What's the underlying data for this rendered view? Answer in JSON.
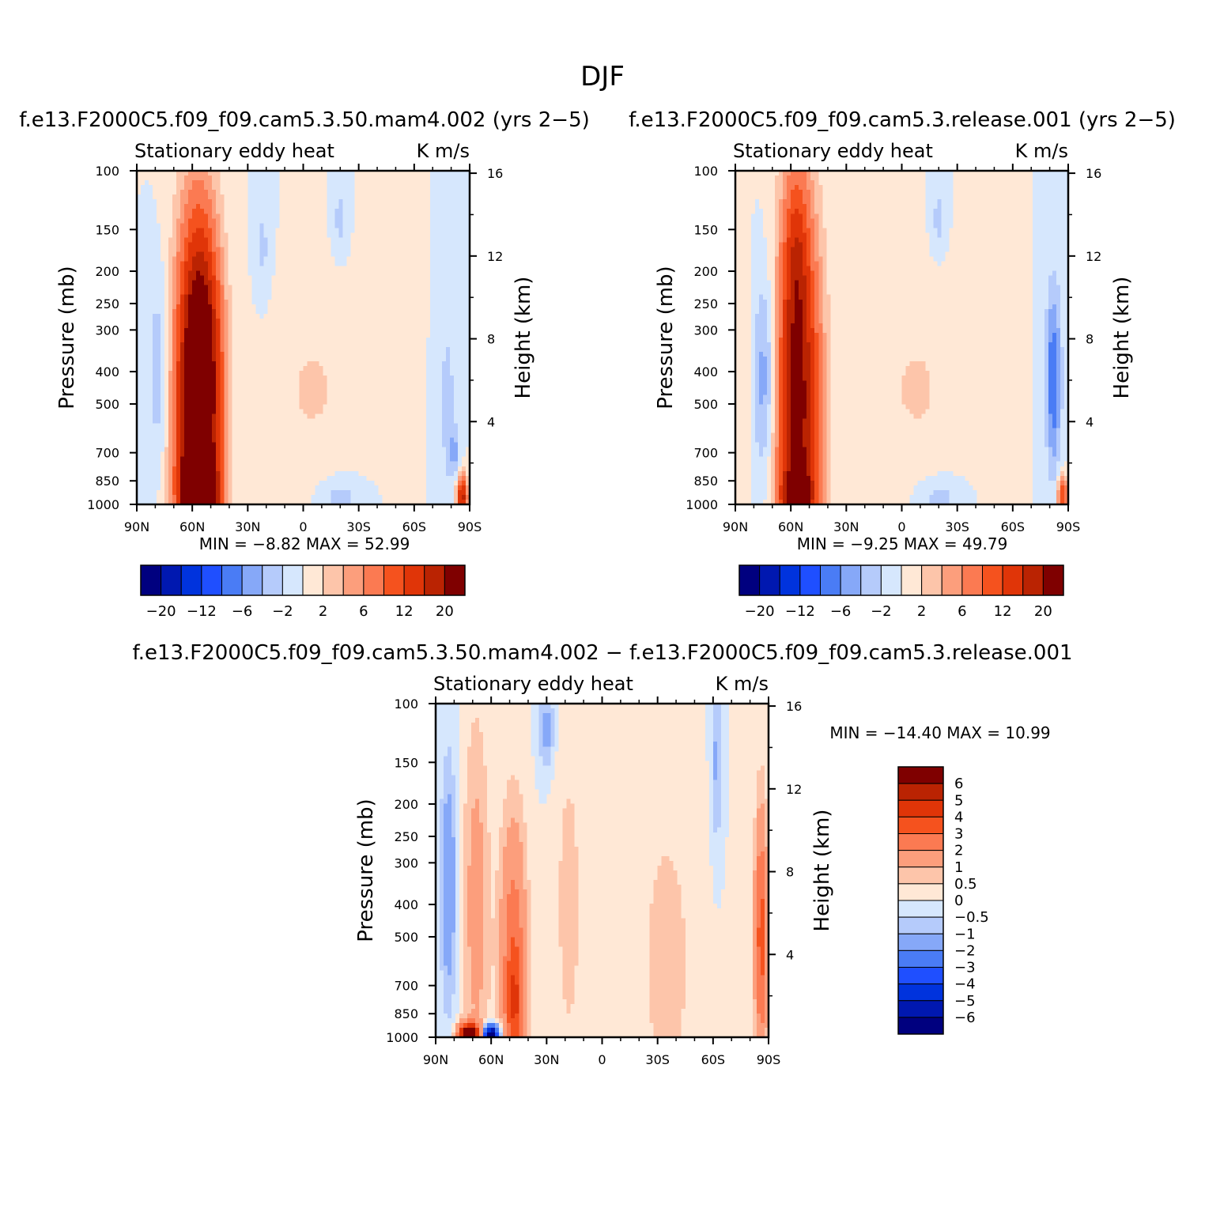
{
  "figure": {
    "title": "DJF"
  },
  "colors": {
    "abs_palette": [
      "#00007f",
      "#0018b0",
      "#0033dd",
      "#1f4fff",
      "#4a7cf5",
      "#86a8f8",
      "#b5cbfb",
      "#d6e7fd",
      "#ffe8d6",
      "#fdc5aa",
      "#fc9e7c",
      "#fb7a52",
      "#f5521e",
      "#e03508",
      "#ba2302",
      "#7f0000"
    ],
    "diff_palette": [
      "#00007f",
      "#0018b0",
      "#0033dd",
      "#1f4fff",
      "#4a7cf5",
      "#86a8f8",
      "#b5cbfb",
      "#d6e7fd",
      "#ffe8d6",
      "#fdc5aa",
      "#fc9e7c",
      "#fb7a52",
      "#f5521e",
      "#e03508",
      "#ba2302",
      "#7f0000"
    ]
  },
  "chart_data": [
    {
      "type": "heatmap",
      "title": "f.e13.F2000C5.f09_f09.cam5.3.50.mam4.002 (yrs 2−5)",
      "left_label": "Stationary eddy heat",
      "right_label": "K m/s",
      "ylabel": "Pressure (mb)",
      "ylabel_right": "Height (km)",
      "x_ticks": [
        "90N",
        "60N",
        "30N",
        "0",
        "30S",
        "60S",
        "90S"
      ],
      "x_values": [
        90,
        60,
        30,
        0,
        -30,
        -60,
        -90
      ],
      "y_ticks": [
        "100",
        "150",
        "200",
        "250",
        "300",
        "400",
        "500",
        "700",
        "850",
        "1000"
      ],
      "y_values": [
        100,
        150,
        200,
        250,
        300,
        400,
        500,
        700,
        850,
        1000
      ],
      "y_ticks_right": [
        "16",
        "12",
        "8",
        "4"
      ],
      "y_values_right": [
        16,
        12,
        8,
        4
      ],
      "ylim": [
        1000,
        100
      ],
      "xlim": [
        90,
        -90
      ],
      "stats_text": "MIN = −8.82 MAX = 52.99",
      "min": -8.82,
      "max": 52.99,
      "colorbar_orientation": "horizontal",
      "colorbar_labels": [
        "−20",
        "−12",
        "−6",
        "−2",
        "2",
        "6",
        "12",
        "20"
      ],
      "levels": [
        -24,
        -20,
        -16,
        -12,
        -9,
        -6,
        -4,
        -2,
        0,
        2,
        4,
        6,
        9,
        12,
        16,
        20,
        24
      ],
      "features": [
        {
          "lat": 57,
          "p": 550,
          "dlat": 8,
          "dp": 0.9,
          "amp": 30
        },
        {
          "lat": 56,
          "p": 930,
          "dlat": 6,
          "dp": 0.18,
          "amp": 25
        },
        {
          "lat": 54,
          "p": 350,
          "dlat": 6,
          "dp": 0.5,
          "amp": 8
        },
        {
          "lat": 78,
          "p": 400,
          "dlat": 4,
          "dp": 0.45,
          "amp": -4
        },
        {
          "lat": 22,
          "p": 170,
          "dlat": 3,
          "dp": 0.25,
          "amp": -2.5
        },
        {
          "lat": -20,
          "p": 140,
          "dlat": 2.5,
          "dp": 0.15,
          "amp": -3
        },
        {
          "lat": -20,
          "p": 950,
          "dlat": 8,
          "dp": 0.1,
          "amp": -3
        },
        {
          "lat": -5,
          "p": 450,
          "dlat": 18,
          "dp": 0.45,
          "amp": 2.2
        },
        {
          "lat": -78,
          "p": 500,
          "dlat": 3,
          "dp": 0.45,
          "amp": -3
        },
        {
          "lat": -86,
          "p": 950,
          "dlat": 2,
          "dp": 0.1,
          "amp": 18
        },
        {
          "lat": -82,
          "p": 700,
          "dlat": 2,
          "dp": 0.12,
          "amp": -4
        }
      ]
    },
    {
      "type": "heatmap",
      "title": "f.e13.F2000C5.f09_f09.cam5.3.release.001 (yrs 2−5)",
      "left_label": "Stationary eddy heat",
      "right_label": "K m/s",
      "ylabel": "Pressure (mb)",
      "ylabel_right": "Height (km)",
      "x_ticks": [
        "90N",
        "60N",
        "30N",
        "0",
        "30S",
        "60S",
        "90S"
      ],
      "x_values": [
        90,
        60,
        30,
        0,
        -30,
        -60,
        -90
      ],
      "y_ticks": [
        "100",
        "150",
        "200",
        "250",
        "300",
        "400",
        "500",
        "700",
        "850",
        "1000"
      ],
      "y_values": [
        100,
        150,
        200,
        250,
        300,
        400,
        500,
        700,
        850,
        1000
      ],
      "y_ticks_right": [
        "16",
        "12",
        "8",
        "4"
      ],
      "y_values_right": [
        16,
        12,
        8,
        4
      ],
      "ylim": [
        1000,
        100
      ],
      "xlim": [
        90,
        -90
      ],
      "stats_text": "MIN = −9.25 MAX = 49.79",
      "min": -9.25,
      "max": 49.79,
      "colorbar_orientation": "horizontal",
      "colorbar_labels": [
        "−20",
        "−12",
        "−6",
        "−2",
        "2",
        "6",
        "12",
        "20"
      ],
      "levels": [
        -24,
        -20,
        -16,
        -12,
        -9,
        -6,
        -4,
        -2,
        0,
        2,
        4,
        6,
        9,
        12,
        16,
        20,
        24
      ],
      "features": [
        {
          "lat": 56,
          "p": 500,
          "dlat": 8,
          "dp": 0.95,
          "amp": 22
        },
        {
          "lat": 57,
          "p": 180,
          "dlat": 4,
          "dp": 0.4,
          "amp": 6
        },
        {
          "lat": 56,
          "p": 940,
          "dlat": 6,
          "dp": 0.15,
          "amp": 12
        },
        {
          "lat": 74,
          "p": 420,
          "dlat": 5,
          "dp": 0.5,
          "amp": -6
        },
        {
          "lat": 82,
          "p": 400,
          "dlat": 3,
          "dp": 0.5,
          "amp": 1.5
        },
        {
          "lat": -20,
          "p": 140,
          "dlat": 2.5,
          "dp": 0.15,
          "amp": -3
        },
        {
          "lat": -20,
          "p": 950,
          "dlat": 8,
          "dp": 0.1,
          "amp": -3
        },
        {
          "lat": -8,
          "p": 450,
          "dlat": 18,
          "dp": 0.45,
          "amp": 2.2
        },
        {
          "lat": -82,
          "p": 420,
          "dlat": 3,
          "dp": 0.45,
          "amp": -8
        },
        {
          "lat": -87,
          "p": 950,
          "dlat": 2,
          "dp": 0.1,
          "amp": 12
        }
      ]
    },
    {
      "type": "heatmap",
      "title": "f.e13.F2000C5.f09_f09.cam5.3.50.mam4.002 − f.e13.F2000C5.f09_f09.cam5.3.release.001",
      "left_label": "Stationary eddy heat",
      "right_label": "K m/s",
      "ylabel": "Pressure (mb)",
      "ylabel_right": "Height (km)",
      "x_ticks": [
        "90N",
        "60N",
        "30N",
        "0",
        "30S",
        "60S",
        "90S"
      ],
      "x_values": [
        90,
        60,
        30,
        0,
        -30,
        -60,
        -90
      ],
      "y_ticks": [
        "100",
        "150",
        "200",
        "250",
        "300",
        "400",
        "500",
        "700",
        "850",
        "1000"
      ],
      "y_values": [
        100,
        150,
        200,
        250,
        300,
        400,
        500,
        700,
        850,
        1000
      ],
      "y_ticks_right": [
        "16",
        "12",
        "8",
        "4"
      ],
      "y_values_right": [
        16,
        12,
        8,
        4
      ],
      "ylim": [
        1000,
        100
      ],
      "xlim": [
        90,
        -90
      ],
      "stats_text": "MIN = −14.40 MAX = 10.99",
      "min": -14.4,
      "max": 10.99,
      "colorbar_orientation": "vertical",
      "colorbar_labels": [
        "6",
        "5",
        "4",
        "3",
        "2",
        "1",
        "0.5",
        "0",
        "−0.5",
        "−1",
        "−2",
        "−3",
        "−4",
        "−5",
        "−6"
      ],
      "levels": [
        -7,
        -6,
        -5,
        -4,
        -3,
        -2,
        -1,
        -0.5,
        0,
        0.5,
        1,
        2,
        3,
        4,
        5,
        6,
        7
      ],
      "features": [
        {
          "lat": 83,
          "p": 350,
          "dlat": 3,
          "dp": 0.6,
          "amp": -1.8
        },
        {
          "lat": 68,
          "p": 400,
          "dlat": 5,
          "dp": 0.9,
          "amp": 1.4
        },
        {
          "lat": 72,
          "p": 990,
          "dlat": 4,
          "dp": 0.06,
          "amp": 8
        },
        {
          "lat": 60,
          "p": 990,
          "dlat": 3,
          "dp": 0.05,
          "amp": -8
        },
        {
          "lat": 48,
          "p": 600,
          "dlat": 5,
          "dp": 0.7,
          "amp": 2.8
        },
        {
          "lat": 47,
          "p": 800,
          "dlat": 3,
          "dp": 0.25,
          "amp": 1.8
        },
        {
          "lat": 30,
          "p": 120,
          "dlat": 3,
          "dp": 0.2,
          "amp": -1.3
        },
        {
          "lat": 18,
          "p": 400,
          "dlat": 6,
          "dp": 0.9,
          "amp": 0.7
        },
        {
          "lat": -35,
          "p": 600,
          "dlat": 12,
          "dp": 0.9,
          "amp": 0.7
        },
        {
          "lat": -62,
          "p": 150,
          "dlat": 2,
          "dp": 0.4,
          "amp": -1.2
        },
        {
          "lat": -86,
          "p": 500,
          "dlat": 2.5,
          "dp": 0.6,
          "amp": 3.5
        }
      ]
    }
  ]
}
